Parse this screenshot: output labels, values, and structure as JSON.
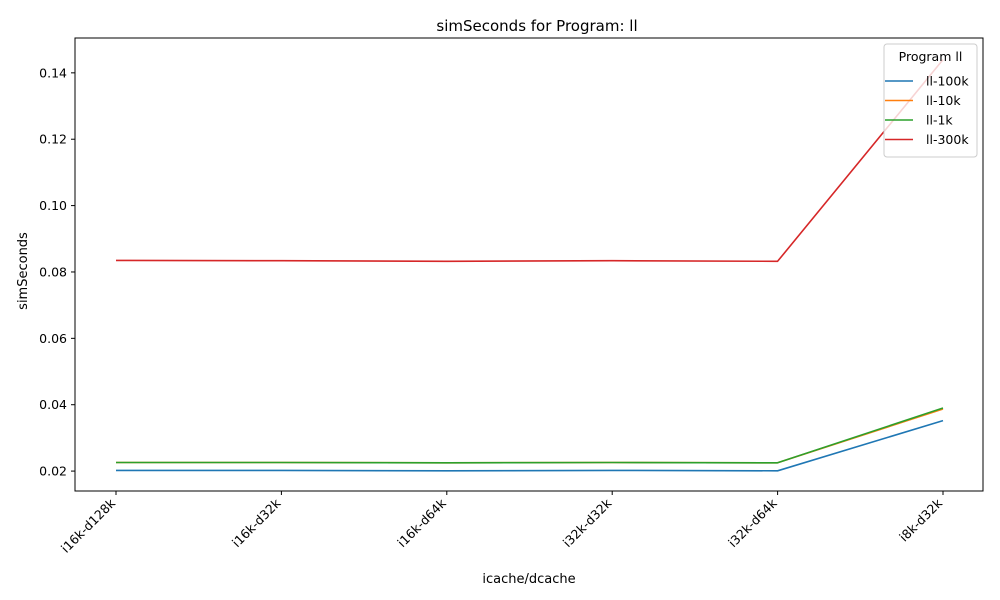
{
  "chart_data": {
    "type": "line",
    "title": "simSeconds for Program: ll",
    "xlabel": "icache/dcache",
    "ylabel": "simSeconds",
    "categories": [
      "i16k-d128k",
      "i16k-d32k",
      "i16k-d64k",
      "i32k-d32k",
      "i32k-d64k",
      "i8k-d32k"
    ],
    "ylim": [
      0.014,
      0.1505
    ],
    "yticks": [
      0.02,
      0.04,
      0.06,
      0.08,
      0.1,
      0.12,
      0.14
    ],
    "ytick_labels": [
      "0.02",
      "0.04",
      "0.06",
      "0.08",
      "0.10",
      "0.12",
      "0.14"
    ],
    "grid": false,
    "legend": {
      "title": "Program ll",
      "placement": "top-right"
    },
    "series": [
      {
        "name": "ll-100k",
        "color": "#1f77b4",
        "values": [
          0.0202,
          0.0202,
          0.0201,
          0.0202,
          0.0201,
          0.0352
        ]
      },
      {
        "name": "ll-10k",
        "color": "#ff7f0e",
        "values": [
          0.0226,
          0.0226,
          0.0225,
          0.0226,
          0.0225,
          0.0387
        ]
      },
      {
        "name": "ll-1k",
        "color": "#2ca02c",
        "values": [
          0.0226,
          0.0226,
          0.0225,
          0.0226,
          0.0225,
          0.039
        ]
      },
      {
        "name": "ll-300k",
        "color": "#d62728",
        "values": [
          0.0835,
          0.0834,
          0.0832,
          0.0834,
          0.0832,
          0.144
        ]
      }
    ]
  }
}
